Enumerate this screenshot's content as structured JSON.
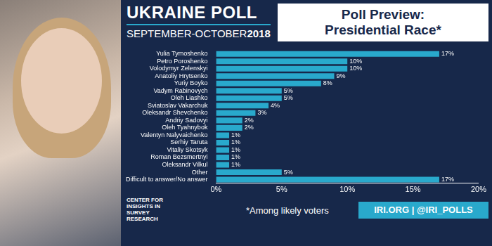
{
  "header": {
    "title": "UKRAINE POLL",
    "subtitle": "SEPTEMBER-OCTOBER",
    "year": "2018"
  },
  "logo": [
    "CENTER FOR",
    "INSIGHTS IN",
    "SURVEY",
    "RESEARCH"
  ],
  "footnote": "*Among likely voters",
  "links": "IRI.ORG | @IRI_POLLS",
  "chart_data": {
    "type": "bar",
    "orientation": "horizontal",
    "title": "Poll Preview: Presidential Race*",
    "categories": [
      "Yulia Tymoshenko",
      "Petro Poroshenko",
      "Volodymyr Zelenskyi",
      "Anatoliy Hrytsenko",
      "Yuriy Boyko",
      "Vadym Rabinovych",
      "Oleh Liashko",
      "Sviatoslav Vakarchuk",
      "Oleksandr Shevchenko",
      "Andriy Sadovyi",
      "Oleh Tyahnybok",
      "Valentyn Nalyvaichenko",
      "Serhiy Taruta",
      "Vitaliy Skotsyk",
      "Roman Bezsmertnyi",
      "Oleksandr Vilkul",
      "Other",
      "Difficult to answer/No answer"
    ],
    "values": [
      17,
      10,
      10,
      9,
      8,
      5,
      5,
      4,
      3,
      2,
      2,
      1,
      1,
      1,
      1,
      1,
      5,
      17
    ],
    "value_labels": [
      "17%",
      "10%",
      "10%",
      "9%",
      "8%",
      "5%",
      "5%",
      "4%",
      "3%",
      "2%",
      "2%",
      "1%",
      "1%",
      "1%",
      "1%",
      "1%",
      "5%",
      "17%"
    ],
    "data_labels": true,
    "color": "#29a9cc",
    "xlim": [
      0,
      20
    ],
    "xticks": [
      {
        "value": 0,
        "label": "0%"
      },
      {
        "value": 5,
        "label": "5%"
      },
      {
        "value": 10,
        "label": "10%"
      },
      {
        "value": 15,
        "label": "15%"
      },
      {
        "value": 20,
        "label": "20%"
      }
    ],
    "grid": false,
    "legend": false
  }
}
